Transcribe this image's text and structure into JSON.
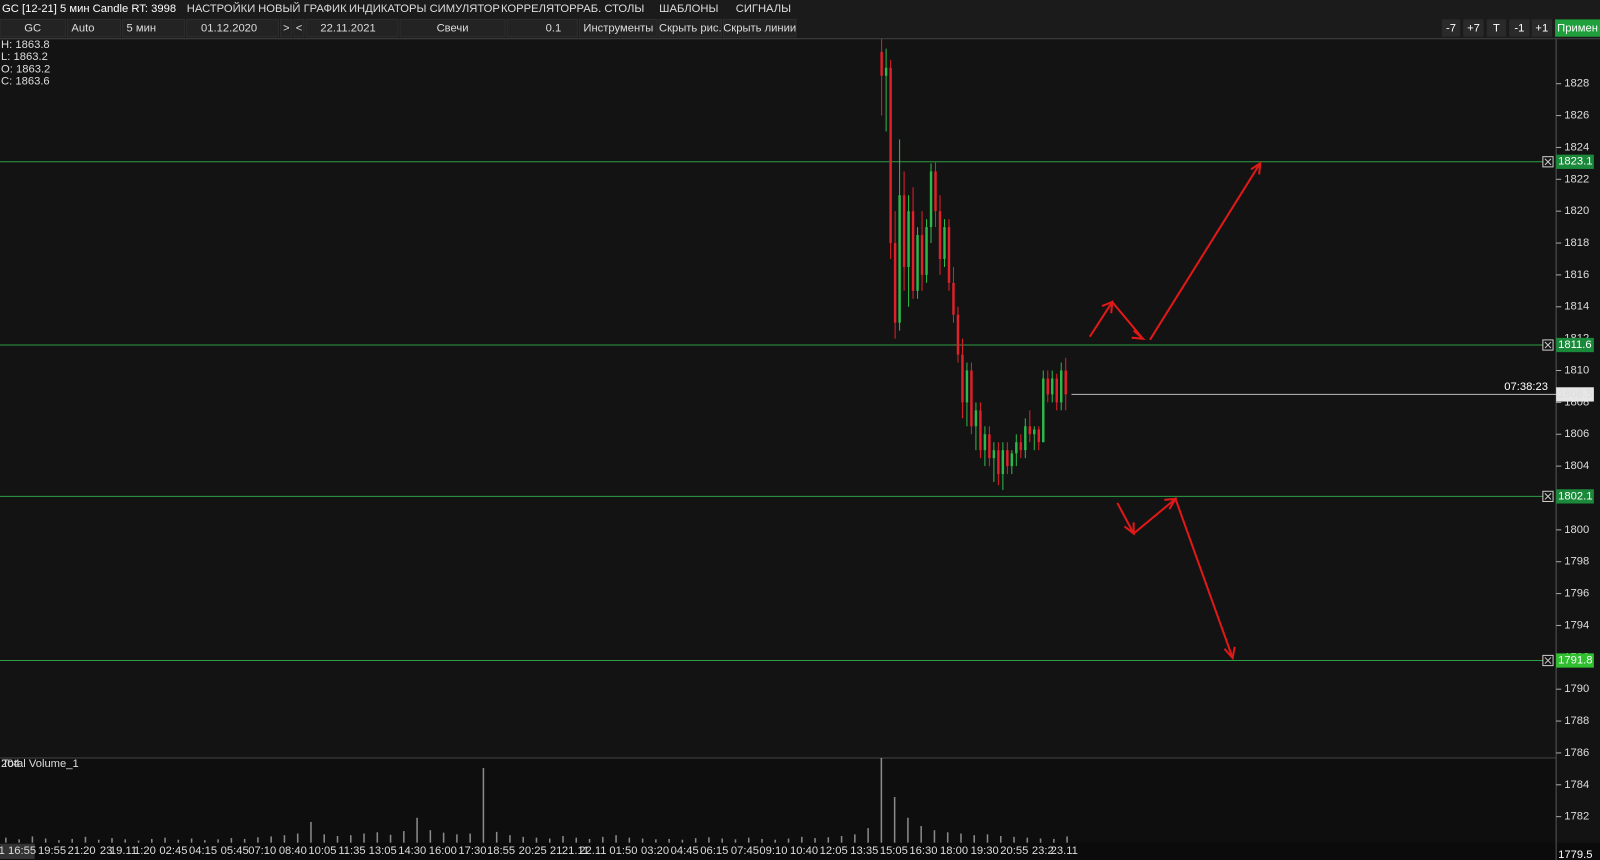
{
  "toolbar": {
    "title": "GC [12-21] 5 мин Candle RT: 3998",
    "menu": [
      {
        "label": "НАСТРОЙКИ",
        "color": "#ff2d78"
      },
      {
        "label": "НОВЫЙ ГРАФИК",
        "color": "#ff7a1f"
      },
      {
        "label": "ИНДИКАТОРЫ",
        "color": "#3cc43c"
      },
      {
        "label": "СИМУЛЯТОР",
        "color": "#d46cff"
      },
      {
        "label": "КОРРЕЛЯТОР",
        "color": "#3d8bff"
      },
      {
        "label": "РАБ. СТОЛЫ",
        "color": "#ffa020"
      },
      {
        "label": "ШАБЛОНЫ",
        "color": "#aaaaaa"
      },
      {
        "label": "СИГНАЛЫ",
        "color": "#e8409a"
      }
    ],
    "fields": [
      "GC",
      "Auto",
      "5 мин",
      "01.12.2020",
      ">",
      "<",
      "22.11.2021",
      "Свечи",
      "0.1",
      "Инструменты",
      "Скрыть рис.",
      "Скрыть линии"
    ],
    "buttons": [
      "-7",
      "+7",
      "T",
      "-1",
      "+1",
      "Примен"
    ]
  },
  "chart_data": {
    "type": "candlestick",
    "ohlc_info": [
      "H: 1863.8",
      "L: 1863.2",
      "O: 1863.2",
      "C: 1863.6"
    ],
    "up_color": "#2db84a",
    "down_color": "#e0202a",
    "candles": [
      [
        1830,
        1830.8,
        1826,
        1828.5
      ],
      [
        1828.5,
        1830.2,
        1825,
        1829
      ],
      [
        1829,
        1829.5,
        1817,
        1818
      ],
      [
        1818,
        1820,
        1812,
        1813
      ],
      [
        1813,
        1824.5,
        1812.5,
        1821
      ],
      [
        1821,
        1822.5,
        1815,
        1816.5
      ],
      [
        1816.5,
        1821,
        1814,
        1820
      ],
      [
        1820,
        1821.5,
        1814.5,
        1815
      ],
      [
        1815,
        1819,
        1814.5,
        1818.5
      ],
      [
        1818.5,
        1820,
        1815,
        1816
      ],
      [
        1816,
        1819.5,
        1815.5,
        1819
      ],
      [
        1819,
        1823,
        1818,
        1822.5
      ],
      [
        1822.5,
        1823.1,
        1819,
        1820
      ],
      [
        1820,
        1821,
        1816,
        1817
      ],
      [
        1817,
        1819.5,
        1816.5,
        1819
      ],
      [
        1819,
        1819.5,
        1815,
        1815.5
      ],
      [
        1815.5,
        1816.5,
        1813,
        1813.5
      ],
      [
        1813.5,
        1814,
        1810.5,
        1811
      ],
      [
        1811,
        1812,
        1807,
        1808
      ],
      [
        1808,
        1810.5,
        1806.5,
        1810
      ],
      [
        1810,
        1810.5,
        1806,
        1806.5
      ],
      [
        1806.5,
        1808,
        1805,
        1807.5
      ],
      [
        1807.5,
        1808,
        1804.5,
        1805
      ],
      [
        1805,
        1806.5,
        1804,
        1806
      ],
      [
        1806,
        1806.5,
        1804,
        1804.5
      ],
      [
        1804.5,
        1805.5,
        1803,
        1805
      ],
      [
        1805,
        1805.5,
        1802.8,
        1803.5
      ],
      [
        1803.5,
        1805.5,
        1802.5,
        1805
      ],
      [
        1805,
        1805.5,
        1803.5,
        1804
      ],
      [
        1804,
        1805,
        1803.5,
        1804.8
      ],
      [
        1804.8,
        1806,
        1804,
        1805.5
      ],
      [
        1805.5,
        1806,
        1804.5,
        1805
      ],
      [
        1805,
        1807,
        1804.5,
        1806.5
      ],
      [
        1806.5,
        1807.5,
        1805.5,
        1806
      ],
      [
        1806,
        1806.5,
        1805,
        1806.3
      ],
      [
        1806.3,
        1806.5,
        1805,
        1805.5
      ],
      [
        1805.5,
        1810,
        1805.5,
        1809.5
      ],
      [
        1809.5,
        1810,
        1808,
        1808.5
      ],
      [
        1808.5,
        1810,
        1808,
        1809.5
      ],
      [
        1809.5,
        1809.8,
        1807.5,
        1808
      ],
      [
        1808,
        1810.5,
        1807.5,
        1810
      ],
      [
        1810,
        1810.8,
        1807.5,
        1808.5
      ]
    ],
    "ylim": [
      1779.28,
      1830.82
    ],
    "yticks": [
      1782,
      1784,
      1786,
      1788,
      1790,
      1792,
      1794,
      1796,
      1798,
      1800,
      1802,
      1804,
      1806,
      1808,
      1810,
      1812,
      1814,
      1816,
      1818,
      1820,
      1822,
      1824,
      1826,
      1828
    ],
    "levels": [
      1823.1,
      1811.6,
      1802.1,
      1791.8
    ],
    "level_color": "#2e9e44",
    "last_price": 1808.5,
    "last_time": "07:38:23",
    "bottom_price": 1779.5,
    "x_labels": [
      "1 16:55",
      "19:55",
      "21:20",
      "23",
      "19.11",
      "1:20",
      "02:45",
      "04:15",
      "05:45",
      "07:10",
      "08:40",
      "10:05",
      "11:35",
      "13:05",
      "14:30",
      "16:00",
      "17:30",
      "18:55",
      "20:25",
      "21",
      "21.11",
      "22.11",
      "01:50",
      "03:20",
      "04:45",
      "06:15",
      "07:45",
      "09:10",
      "10:40",
      "12:05",
      "13:35",
      "15:05",
      "16:30",
      "18:00",
      "19:30",
      "20:55",
      "23:2",
      "23.11"
    ],
    "volume": {
      "name": "Total Volume_1",
      "color": "#8a8a8a",
      "ylim": [
        0,
        204
      ],
      "yticks": [
        204
      ],
      "values": [
        12,
        8,
        15,
        10,
        6,
        9,
        14,
        7,
        11,
        8,
        5,
        9,
        12,
        7,
        10,
        6,
        8,
        11,
        9,
        13,
        15,
        18,
        22,
        50,
        20,
        16,
        18,
        22,
        25,
        19,
        28,
        60,
        30,
        24,
        20,
        22,
        180,
        26,
        18,
        14,
        12,
        10,
        16,
        12,
        9,
        14,
        18,
        12,
        10,
        8,
        9,
        7,
        11,
        13,
        10,
        8,
        12,
        9,
        7,
        10,
        14,
        11,
        13,
        16,
        20,
        35,
        204,
        110,
        60,
        40,
        30,
        25,
        22,
        18,
        20,
        16,
        14,
        12,
        10,
        9,
        15
      ]
    }
  }
}
